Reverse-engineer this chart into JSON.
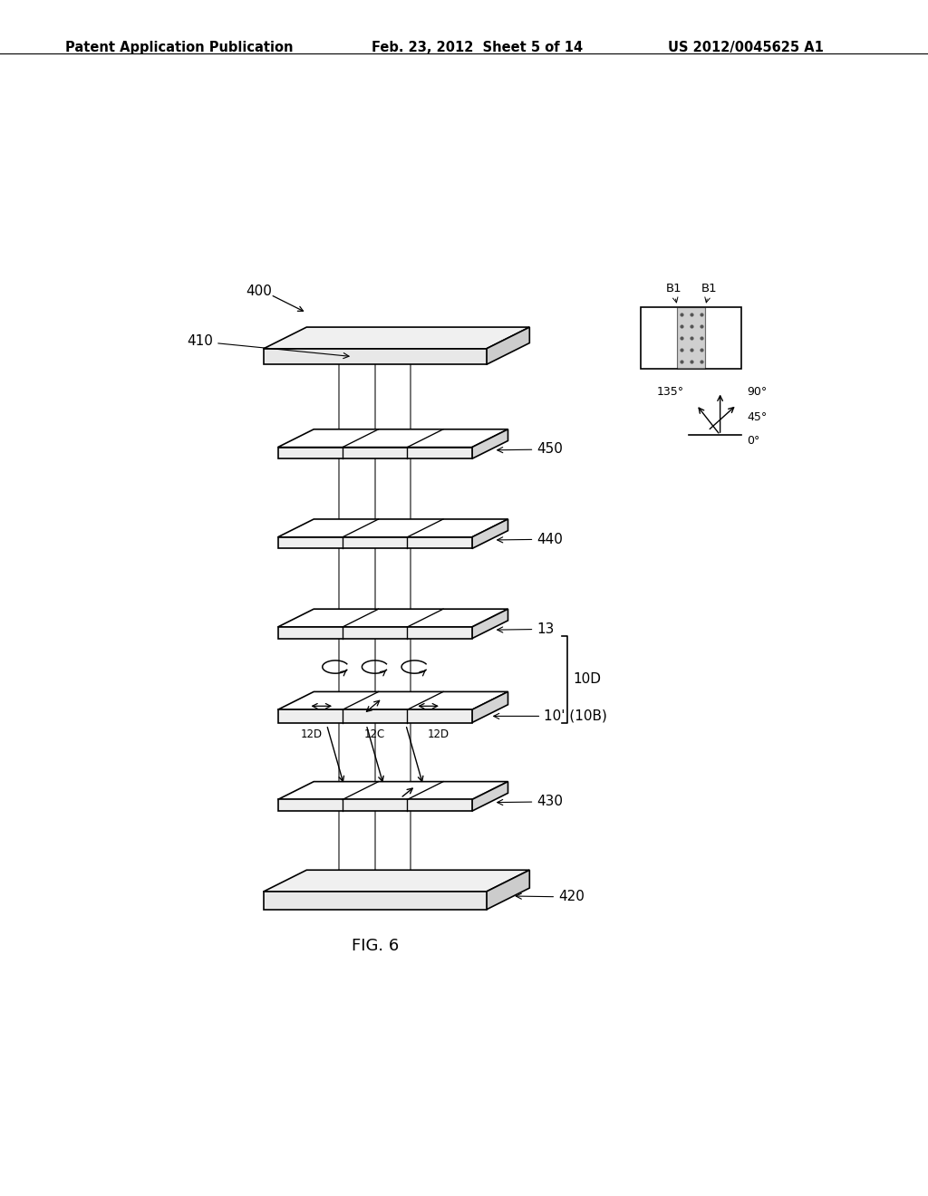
{
  "title_left": "Patent Application Publication",
  "title_mid": "Feb. 23, 2012  Sheet 5 of 14",
  "title_right": "US 2012/0045625 A1",
  "fig_label": "FIG. 6",
  "background_color": "#ffffff",
  "line_color": "#000000"
}
